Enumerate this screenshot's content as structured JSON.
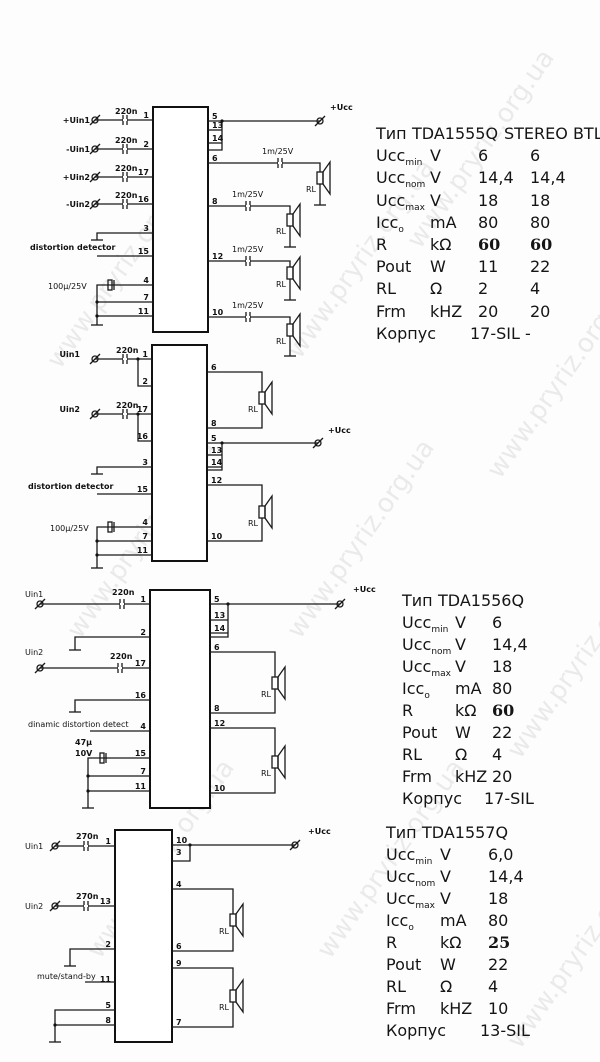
{
  "watermark": "www.pryriz.org.ua",
  "diagrams": [
    {
      "inputs": [
        "+Uin1",
        "-Uin1",
        "+Uin2",
        "-Uin2"
      ],
      "input_cap": "220n",
      "left_pins": [
        "1",
        "2",
        "17",
        "16",
        "3",
        "15",
        "4",
        "7",
        "11"
      ],
      "right_pins": [
        "5",
        "13",
        "14",
        "6",
        "8",
        "12",
        "10"
      ],
      "detector_label": "distortion detector",
      "cap_label": "100µ/25V",
      "out_cap": "1m/25V",
      "ucc": "+Ucc",
      "load": "RL"
    },
    {
      "inputs": [
        "Uin1",
        "Uin2"
      ],
      "input_cap": "220n",
      "left_pins": [
        "1",
        "2",
        "17",
        "16",
        "3",
        "15",
        "4",
        "7",
        "11"
      ],
      "right_pins": [
        "6",
        "8",
        "5",
        "13",
        "14",
        "12",
        "10"
      ],
      "detector_label": "distortion detector",
      "cap_label": "100µ/25V",
      "ucc": "+Ucc",
      "load": "RL"
    },
    {
      "inputs": [
        "Uin1",
        "Uin2"
      ],
      "input_cap": "220n",
      "left_pins": [
        "1",
        "2",
        "17",
        "16",
        "4",
        "15",
        "7",
        "11"
      ],
      "right_pins": [
        "5",
        "13",
        "14",
        "6",
        "8",
        "12",
        "10"
      ],
      "detector_label": "dinamic distortion detect",
      "cap_label_1": "47µ",
      "cap_label_2": "10V",
      "ucc": "+Ucc",
      "load": "RL"
    },
    {
      "inputs": [
        "Uin1",
        "Uin2"
      ],
      "input_cap": "270n",
      "left_pins": [
        "1",
        "13",
        "2",
        "11",
        "5",
        "8"
      ],
      "right_pins": [
        "10",
        "3",
        "4",
        "6",
        "9",
        "7"
      ],
      "mute_label": "mute/stand-by",
      "ucc": "+Ucc",
      "load": "RL"
    }
  ],
  "tables": [
    {
      "type_label": "Тип",
      "chip": "TDA1555Q",
      "mode": "STEREO BTL",
      "rows": [
        {
          "p": "Ucc",
          "sub": "min",
          "unit": "V",
          "v": [
            "6",
            "6"
          ]
        },
        {
          "p": "Ucc",
          "sub": "nom",
          "unit": "V",
          "v": [
            "14,4",
            "14,4"
          ]
        },
        {
          "p": "Ucc",
          "sub": "max",
          "unit": "V",
          "v": [
            "18",
            "18"
          ]
        },
        {
          "p": "Icc",
          "sub": "o",
          "unit": "mA",
          "v": [
            "80",
            "80"
          ]
        },
        {
          "p": "R",
          "sub": "",
          "unit": "kΩ",
          "v": [
            "60",
            "60"
          ]
        },
        {
          "p": "Pout",
          "sub": "",
          "unit": "W",
          "v": [
            "11",
            "22"
          ]
        },
        {
          "p": "RL",
          "sub": "",
          "unit": "Ω",
          "v": [
            "2",
            "4"
          ]
        },
        {
          "p": "Frm",
          "sub": "",
          "unit": "kHZ",
          "v": [
            "20",
            "20"
          ]
        }
      ],
      "package_label": "Корпус",
      "package": "17-SIL -"
    },
    {
      "type_label": "Тип",
      "chip": "TDA1556Q",
      "rows": [
        {
          "p": "Ucc",
          "sub": "min",
          "unit": "V",
          "v": [
            "6"
          ]
        },
        {
          "p": "Ucc",
          "sub": "nom",
          "unit": "V",
          "v": [
            "14,4"
          ]
        },
        {
          "p": "Ucc",
          "sub": "max",
          "unit": "V",
          "v": [
            "18"
          ]
        },
        {
          "p": "Icc",
          "sub": "o",
          "unit": "mA",
          "v": [
            "80"
          ]
        },
        {
          "p": "R",
          "sub": "",
          "unit": "kΩ",
          "v": [
            "60"
          ]
        },
        {
          "p": "Pout",
          "sub": "",
          "unit": "W",
          "v": [
            "22"
          ]
        },
        {
          "p": "RL",
          "sub": "",
          "unit": "Ω",
          "v": [
            "4"
          ]
        },
        {
          "p": "Frm",
          "sub": "",
          "unit": "kHZ",
          "v": [
            "20"
          ]
        }
      ],
      "package_label": "Корпус",
      "package": "17-SIL"
    },
    {
      "type_label": "Тип",
      "chip": "TDA1557Q",
      "rows": [
        {
          "p": "Ucc",
          "sub": "min",
          "unit": "V",
          "v": [
            "6,0"
          ]
        },
        {
          "p": "Ucc",
          "sub": "nom",
          "unit": "V",
          "v": [
            "14,4"
          ]
        },
        {
          "p": "Ucc",
          "sub": "max",
          "unit": "V",
          "v": [
            "18"
          ]
        },
        {
          "p": "Icc",
          "sub": "o",
          "unit": "mA",
          "v": [
            "80"
          ]
        },
        {
          "p": "R",
          "sub": "",
          "unit": "kΩ",
          "v": [
            "25"
          ]
        },
        {
          "p": "Pout",
          "sub": "",
          "unit": "W",
          "v": [
            "22"
          ]
        },
        {
          "p": "RL",
          "sub": "",
          "unit": "Ω",
          "v": [
            "4"
          ]
        },
        {
          "p": "Frm",
          "sub": "",
          "unit": "kHZ",
          "v": [
            "10"
          ]
        }
      ],
      "package_label": "Корпус",
      "package": "13-SIL"
    }
  ]
}
